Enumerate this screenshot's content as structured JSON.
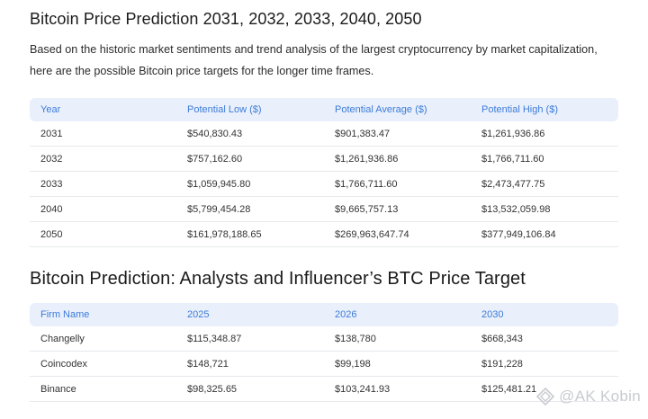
{
  "section1": {
    "title": "Bitcoin Price Prediction 2031, 2032, 2033, 2040, 2050",
    "intro": "Based on the historic market sentiments and trend analysis of the largest cryptocurrency by market capitalization, here are the possible Bitcoin price targets for the longer time frames.",
    "headers": [
      "Year",
      "Potential Low ($)",
      "Potential Average ($)",
      "Potential High ($)"
    ],
    "rows": [
      [
        "2031",
        "$540,830.43",
        "$901,383.47",
        "$1,261,936.86"
      ],
      [
        "2032",
        "$757,162.60",
        "$1,261,936.86",
        "$1,766,711.60"
      ],
      [
        "2033",
        "$1,059,945.80",
        "$1,766,711.60",
        "$2,473,477.75"
      ],
      [
        "2040",
        "$5,799,454.28",
        "$9,665,757.13",
        "$13,532,059.98"
      ],
      [
        "2050",
        "$161,978,188.65",
        "$269,963,647.74",
        "$377,949,106.84"
      ]
    ]
  },
  "section2": {
    "title": "Bitcoin Prediction: Analysts and Influencer’s BTC Price Target",
    "headers": [
      "Firm Name",
      "2025",
      "2026",
      "2030"
    ],
    "rows": [
      [
        "Changelly",
        "$115,348.87",
        "$138,780",
        "$668,343"
      ],
      [
        "Coincodex",
        "$148,721",
        "$99,198",
        "$191,228"
      ],
      [
        "Binance",
        "$98,325.65",
        "$103,241.93",
        "$125,481.21"
      ]
    ]
  },
  "watermark": {
    "text": "@AK Kobin",
    "icon": "diamond-logo-icon"
  }
}
